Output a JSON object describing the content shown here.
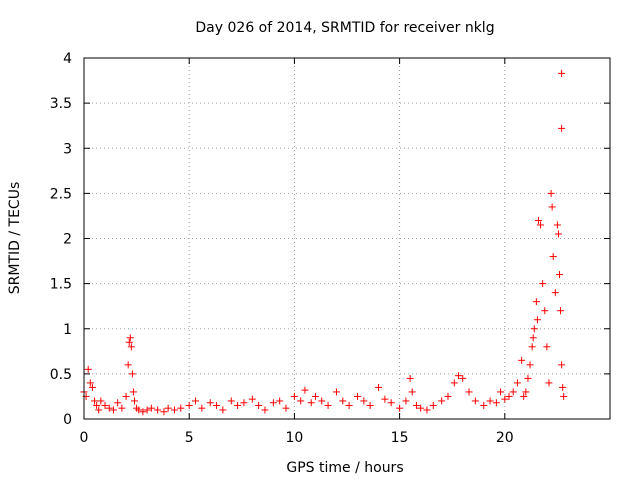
{
  "chart_data": {
    "type": "scatter",
    "title": "Day 026 of 2014, SRMTID for receiver nklg",
    "xlabel": "GPS time / hours",
    "ylabel": "SRMTID / TECUs",
    "xlim": [
      0,
      25
    ],
    "ylim": [
      0,
      4
    ],
    "x_ticks": [
      0,
      5,
      10,
      15,
      20
    ],
    "x_tick_labels": [
      "0",
      "5",
      "10",
      "15",
      "20"
    ],
    "y_ticks": [
      0,
      0.5,
      1,
      1.5,
      2,
      2.5,
      3,
      3.5,
      4
    ],
    "y_tick_labels": [
      "0",
      "0.5",
      "1",
      "1.5",
      "2",
      "2.5",
      "3",
      "3.5",
      "4"
    ],
    "grid": true,
    "marker": "+",
    "color": "#ff0000",
    "series": [
      {
        "name": "SRMTID",
        "x": [
          0.0,
          0.1,
          0.2,
          0.3,
          0.4,
          0.5,
          0.6,
          0.7,
          0.8,
          1.0,
          1.2,
          1.4,
          1.6,
          1.8,
          2.0,
          2.1,
          2.15,
          2.2,
          2.25,
          2.3,
          2.35,
          2.4,
          2.5,
          2.6,
          2.8,
          3.0,
          3.2,
          3.5,
          3.8,
          4.0,
          4.3,
          4.6,
          5.0,
          5.3,
          5.6,
          6.0,
          6.3,
          6.6,
          7.0,
          7.3,
          7.6,
          8.0,
          8.3,
          8.6,
          9.0,
          9.3,
          9.6,
          10.0,
          10.3,
          10.5,
          10.8,
          11.0,
          11.3,
          11.6,
          12.0,
          12.3,
          12.6,
          13.0,
          13.3,
          13.6,
          14.0,
          14.3,
          14.6,
          15.0,
          15.3,
          15.5,
          15.6,
          15.8,
          16.0,
          16.3,
          16.6,
          17.0,
          17.3,
          17.6,
          17.8,
          18.0,
          18.3,
          18.6,
          19.0,
          19.3,
          19.6,
          19.8,
          20.0,
          20.2,
          20.4,
          20.6,
          20.8,
          20.9,
          21.0,
          21.1,
          21.2,
          21.3,
          21.35,
          21.4,
          21.5,
          21.55,
          21.6,
          21.7,
          21.8,
          21.9,
          22.0,
          22.1,
          22.2,
          22.25,
          22.3,
          22.4,
          22.5,
          22.55,
          22.6,
          22.65,
          22.7
        ],
        "values": [
          0.3,
          0.25,
          0.55,
          0.4,
          0.35,
          0.2,
          0.15,
          0.1,
          0.2,
          0.15,
          0.12,
          0.1,
          0.18,
          0.12,
          0.25,
          0.6,
          0.85,
          0.9,
          0.8,
          0.5,
          0.3,
          0.2,
          0.12,
          0.1,
          0.08,
          0.1,
          0.12,
          0.1,
          0.08,
          0.12,
          0.1,
          0.12,
          0.15,
          0.2,
          0.12,
          0.18,
          0.15,
          0.1,
          0.2,
          0.15,
          0.18,
          0.22,
          0.15,
          0.1,
          0.18,
          0.2,
          0.12,
          0.25,
          0.2,
          0.32,
          0.18,
          0.25,
          0.2,
          0.15,
          0.3,
          0.2,
          0.15,
          0.25,
          0.2,
          0.15,
          0.35,
          0.22,
          0.18,
          0.12,
          0.2,
          0.45,
          0.3,
          0.15,
          0.12,
          0.1,
          0.15,
          0.2,
          0.25,
          0.4,
          0.48,
          0.45,
          0.3,
          0.2,
          0.15,
          0.2,
          0.18,
          0.3,
          0.22,
          0.25,
          0.3,
          0.4,
          0.65,
          0.25,
          0.3,
          0.45,
          0.6,
          0.8,
          0.9,
          1.0,
          1.3,
          1.1,
          2.2,
          2.15,
          1.5,
          1.2,
          0.8,
          0.4,
          2.5,
          2.35,
          1.8,
          1.4,
          2.15,
          2.05,
          1.6,
          1.2,
          0.6
        ],
        "extra_points": [
          {
            "x": 22.7,
            "y": 3.83
          },
          {
            "x": 22.7,
            "y": 3.22
          },
          {
            "x": 22.75,
            "y": 0.35
          },
          {
            "x": 22.8,
            "y": 0.25
          }
        ]
      }
    ]
  }
}
